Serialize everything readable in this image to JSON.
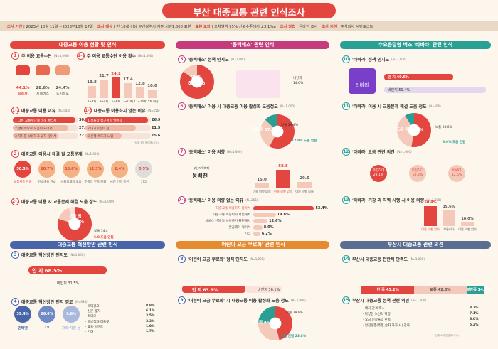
{
  "header": {
    "title": "부산 대중교통 관련 인식조사",
    "meta": [
      {
        "k": "조사 기간",
        "v": "2023년 10월 11일 ~2023년10월 17일"
      },
      {
        "k": "조사 대상",
        "v": "만 18세 이상 부산광역시 거주 시민1,000 표본"
      },
      {
        "k": "표본 오차",
        "v": "오차범위 95% 신뢰수준에서 ±3.1%p"
      },
      {
        "k": "조사 방법",
        "v": "온라인 조사"
      },
      {
        "k": "조사 기관",
        "v": "주식회사 서던포스트"
      }
    ]
  },
  "sections": {
    "s1": "대중교통 이용 현황 및 인식",
    "s2": "'동백패스' 관련 인식",
    "s3": "수요응답형 버스 '타바라' 관련 인식",
    "s4": "대중교통 혁신방안 관련 인식",
    "s5": "'어린이 요금 무료화' 관련 인식",
    "s6": "부산시 대중교통 관련 의견"
  },
  "questions": {
    "q1": "주 이용 교통수단",
    "q1n": "(N=1,000)",
    "q1b": "주 이용 교통수단 이용 횟수",
    "q1bn": "(N=1,000)",
    "q12": "대중교통 이용 이유",
    "q12n": "(N=544)",
    "q13": "대중교통 이용하지 않는 이유",
    "q13n": "(N=456)",
    "q2": "대중교통 이용시 해결 될 교통문제",
    "q2n": "(N=1,000)",
    "q21": "대중교통 이용 시 교통문제 해결 도움 정도",
    "q21n": "(N=1,000)",
    "q3": "대중교통 혁신방안 인지도",
    "q3n": "(N=1,000)",
    "q4": "대중교통 혁신방안 인지 경로",
    "q4n": "(N=685)",
    "q5": "'동백패스' 정책 인지도",
    "q5n": "(N=1,000)",
    "q6": "'동백패스' 이용 시 대중교통 이용 활성화 도움정도",
    "q6n": "(N=1,000)",
    "q7": "'동백패스' 이용 의향",
    "q7n": "(N=1,000)",
    "q71": "'동백패스' 이용 의향 없는 이유",
    "q71n": "(N=265)",
    "q8": "'어린이 요금 무료화' 정책 인지도",
    "q8n": "(N=1,000)",
    "q9": "'어린이 요금 무료화' 시 대중교통 이용 활성화 도움 정도",
    "q9n": "(N=1,000)",
    "q10": "'타바라' 정책 인지도",
    "q10n": "(N=1,000)",
    "q11": "'타바라' 이용 시 교통문제 해결 도움 정도",
    "q11n": "(N=406)",
    "q12t": "'타바라' 요금 관련 의견",
    "q12tn": "(N=1,000)",
    "q13t": "'타바라' 기장 외 지역 시행 시 이용 의향",
    "q13tn": "(N=1,000)",
    "q14": "부산시 대중교통 전반적 만족도",
    "q14n": "(N=1,000)",
    "q15": "부산시 대중교통 정책 관련 의견",
    "q15n": "(N=1,000)"
  },
  "numbers": {
    "n1": "1",
    "n1b": "1-1",
    "n12": "1-2",
    "n13": "1-3",
    "n2": "2",
    "n21": "2-1",
    "n3": "3",
    "n4": "4",
    "n5": "5",
    "n6": "6",
    "n7": "7",
    "n71": "7-1",
    "n8": "8",
    "n9": "9",
    "n10": "10",
    "n11": "11",
    "n12t": "12",
    "n13t": "13",
    "n14": "14",
    "n15": "15"
  },
  "chart_data": [
    {
      "id": "q1",
      "type": "bar",
      "categories": [
        "승용차",
        "시내버스",
        "도시철도"
      ],
      "values": [
        44.1,
        28.6,
        24.4
      ]
    },
    {
      "id": "q1b",
      "type": "bar",
      "categories": [
        "1~2회",
        "3~4회",
        "5~6회",
        "7~10회",
        "11~14회",
        "15회 이상"
      ],
      "values": [
        13.8,
        21.7,
        24.2,
        17.4,
        12.8,
        10.0
      ]
    },
    {
      "id": "q12",
      "type": "bar",
      "categories": [
        "다른 교통수단에 비해 빨라서",
        "경제적으로 도움이 되어서",
        "자차를 보유하고 있지 않아서"
      ],
      "values": [
        30.7,
        27.0,
        22.1
      ]
    },
    {
      "id": "q13",
      "type": "bar",
      "categories": [
        "정류장 접근성이 떨어짐",
        "대기시간이 김",
        "운행 속도가 느림"
      ],
      "values": [
        26.9,
        21.5,
        15.6
      ]
    },
    {
      "id": "q2",
      "type": "bar",
      "categories": [
        "교통체증 완화",
        "탄소배출 감소",
        "사회경제적 도움",
        "주차장 부족 완화",
        "시민 건강 증진",
        "기타"
      ],
      "values": [
        50.5,
        20.7,
        13.6,
        12.3,
        2.4,
        0.5
      ]
    },
    {
      "id": "q21",
      "type": "pie",
      "categories": [
        "도움 됨",
        "보통",
        "도움 안됨"
      ],
      "values": [
        79.8,
        14.4,
        5.8
      ]
    },
    {
      "id": "q3",
      "type": "bar",
      "categories": [
        "인 지",
        "비인지"
      ],
      "values": [
        68.5,
        31.5
      ]
    },
    {
      "id": "q4",
      "type": "bar",
      "categories": [
        "인터넷",
        "TV",
        "가족·지인 등",
        "옥외광고",
        "신문·잡지",
        "라디오",
        "홍보책자·리플릿",
        "교육·이벤트",
        "기타"
      ],
      "values": [
        39.4,
        26.6,
        9.6,
        8.8,
        6.1,
        3.5,
        3.3,
        1.0,
        1.7
      ]
    },
    {
      "id": "q5",
      "type": "pie",
      "categories": [
        "인 지",
        "비인지"
      ],
      "values": [
        85.4,
        14.6
      ]
    },
    {
      "id": "q6",
      "type": "pie",
      "categories": [
        "도움 됨",
        "보통",
        "도움 안됨"
      ],
      "values": [
        57.8,
        29.4,
        12.8
      ]
    },
    {
      "id": "q7",
      "type": "bar",
      "categories": [
        "이용 의향 없음",
        "이용 의향 있음",
        "이용 의향 모름"
      ],
      "values": [
        15.0,
        58.5,
        20.5
      ]
    },
    {
      "id": "q71",
      "type": "bar",
      "categories": [
        "대중교통 이용하지 않아서",
        "대중교통 이용비가 저렴해서",
        "서비스 신청 등 사용하기 불편해서",
        "환급액이 적어서",
        "기타"
      ],
      "values": [
        53.4,
        19.8,
        12.6,
        8.0,
        6.2
      ]
    },
    {
      "id": "q8",
      "type": "bar",
      "categories": [
        "인 지",
        "비인지"
      ],
      "values": [
        63.9,
        36.1
      ]
    },
    {
      "id": "q9",
      "type": "pie",
      "categories": [
        "도움 됨",
        "보통",
        "도움 안됨"
      ],
      "values": [
        46.3,
        29.9,
        23.8
      ]
    },
    {
      "id": "q10",
      "type": "bar",
      "categories": [
        "인 지",
        "비인지"
      ],
      "values": [
        40.6,
        59.4
      ]
    },
    {
      "id": "q11",
      "type": "pie",
      "categories": [
        "도움 됨",
        "보통",
        "도움 안됨"
      ],
      "values": [
        52.5,
        38.6,
        8.9
      ]
    },
    {
      "id": "q12t",
      "type": "bar",
      "categories": [
        "저렴하다",
        "적정하다",
        "비싸다"
      ],
      "values": [
        28.1,
        59.2,
        12.6
      ]
    },
    {
      "id": "q13t",
      "type": "bar",
      "categories": [
        "이용 의향 있다",
        "보통이다",
        "이용 의향 없다"
      ],
      "values": [
        50.4,
        39.6,
        10.0
      ]
    },
    {
      "id": "q14",
      "type": "bar",
      "categories": [
        "만 족",
        "보통",
        "불만족"
      ],
      "values": [
        43.2,
        42.6,
        14.2
      ]
    },
    {
      "id": "q15",
      "type": "bar",
      "categories": [
        "배차 간격 축소",
        "다양한 노선의 확장",
        "요금 인상률의 낮춤",
        "안전운행(주행,승차,하차 시) 강화"
      ],
      "values": [
        8.7,
        7.1,
        6.0,
        5.2
      ]
    }
  ],
  "labels": {
    "unit_pct": "%",
    "pass_brand": "동백전",
    "busan_brand": "부산지역화폐",
    "taba": "타바라",
    "note_multi": "*상위 3개 응답제시(%)",
    "note_q4": "*상위 3개 응답제시(%)",
    "note_q15": "*상위 4개 응답제시(%)"
  }
}
